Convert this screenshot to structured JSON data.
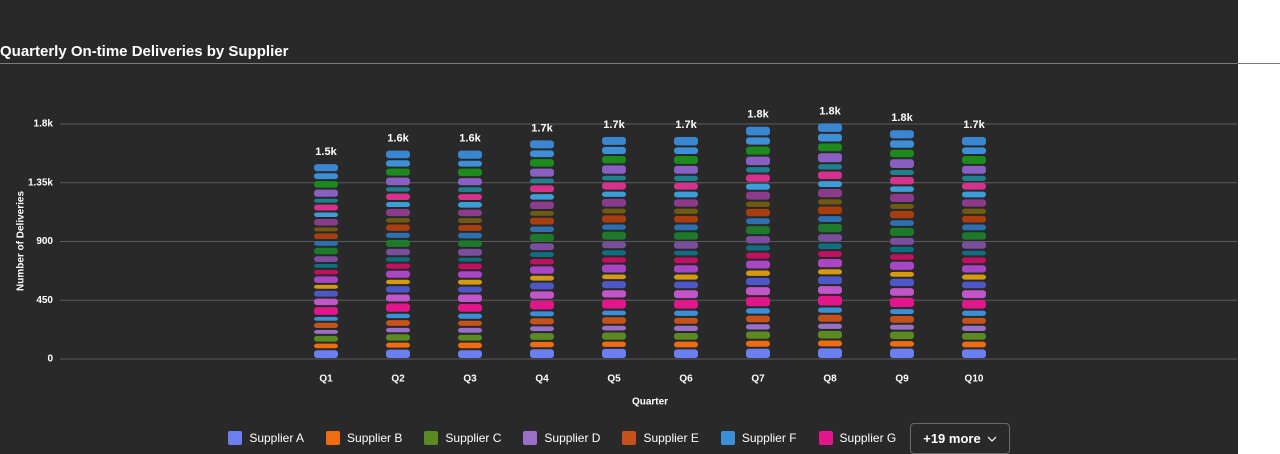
{
  "chart_data": {
    "type": "stacked-bar",
    "title": "Quarterly On-time Deliveries by Supplier",
    "x_label": "Quarter",
    "y_label": "Number of Deliveries",
    "categories": [
      "Q1",
      "Q2",
      "Q3",
      "Q4",
      "Q5",
      "Q6",
      "Q7",
      "Q8",
      "Q9",
      "Q10"
    ],
    "total_labels": [
      "1.5k",
      "1.6k",
      "1.6k",
      "1.7k",
      "1.7k",
      "1.7k",
      "1.8k",
      "1.8k",
      "1.8k",
      "1.7k"
    ],
    "ylim": [
      0,
      2100
    ],
    "yticks": [
      0,
      450,
      900,
      {
        "value": 1350,
        "label": "1.35k"
      },
      {
        "value": 1800,
        "label": "1.8k"
      }
    ],
    "grid": true,
    "legend_more": "+19 more",
    "series": [
      {
        "name": "Supplier A",
        "color": "#6b7ff0",
        "values": [
          75,
          79,
          75,
          82,
          85,
          81,
          86,
          89,
          87,
          81
        ]
      },
      {
        "name": "Supplier B",
        "color": "#f06c12",
        "values": [
          50,
          54,
          58,
          57,
          56,
          60,
          61,
          60,
          58,
          60
        ]
      },
      {
        "name": "Supplier C",
        "color": "#5b8a23",
        "values": [
          60,
          64,
          60,
          67,
          70,
          66,
          71,
          74,
          72,
          66
        ]
      },
      {
        "name": "Supplier D",
        "color": "#9a6fc7",
        "values": [
          45,
          49,
          53,
          52,
          51,
          55,
          56,
          55,
          53,
          55
        ]
      },
      {
        "name": "Supplier E",
        "color": "#c4521a",
        "values": [
          55,
          59,
          55,
          62,
          65,
          61,
          66,
          69,
          67,
          61
        ]
      },
      {
        "name": "Supplier F",
        "color": "#3a8fd6",
        "values": [
          45,
          49,
          53,
          52,
          51,
          55,
          56,
          55,
          53,
          55
        ]
      },
      {
        "name": "Supplier G",
        "color": "#e0168a",
        "values": [
          75,
          79,
          75,
          82,
          85,
          81,
          86,
          89,
          87,
          81
        ]
      },
      {
        "color": "#c056c8",
        "values": [
          65,
          69,
          73,
          72,
          71,
          75,
          76,
          75,
          73,
          75
        ]
      },
      {
        "color": "#4d57c8",
        "values": [
          60,
          64,
          60,
          67,
          70,
          66,
          71,
          74,
          72,
          66
        ]
      },
      {
        "color": "#d49a10",
        "values": [
          45,
          49,
          53,
          52,
          51,
          55,
          56,
          55,
          53,
          55
        ]
      },
      {
        "color": "#a946c6",
        "values": [
          65,
          69,
          65,
          72,
          75,
          71,
          76,
          79,
          77,
          71
        ]
      },
      {
        "color": "#c01060",
        "values": [
          50,
          54,
          58,
          57,
          56,
          60,
          61,
          60,
          58,
          60
        ]
      },
      {
        "color": "#0d6f80",
        "values": [
          45,
          49,
          45,
          52,
          55,
          51,
          56,
          59,
          57,
          51
        ]
      },
      {
        "color": "#7a4e9c",
        "values": [
          60,
          64,
          68,
          67,
          66,
          70,
          71,
          70,
          68,
          70
        ]
      },
      {
        "color": "#1c7a2a",
        "values": [
          65,
          69,
          65,
          72,
          75,
          71,
          76,
          79,
          77,
          71
        ]
      },
      {
        "color": "#2f6fb0",
        "values": [
          50,
          54,
          58,
          57,
          56,
          60,
          61,
          60,
          58,
          60
        ]
      },
      {
        "color": "#a83e10",
        "values": [
          60,
          64,
          60,
          67,
          70,
          66,
          71,
          74,
          72,
          66
        ]
      },
      {
        "color": "#6e5a12",
        "values": [
          45,
          49,
          53,
          52,
          51,
          55,
          56,
          55,
          53,
          55
        ]
      },
      {
        "color": "#8a3b8c",
        "values": [
          65,
          69,
          65,
          72,
          75,
          71,
          76,
          79,
          77,
          71
        ]
      },
      {
        "color": "#3b9ed8",
        "values": [
          50,
          54,
          58,
          57,
          56,
          60,
          61,
          60,
          58,
          60
        ]
      },
      {
        "color": "#d6318c",
        "values": [
          60,
          64,
          60,
          67,
          70,
          66,
          71,
          74,
          72,
          66
        ]
      },
      {
        "color": "#1f8090",
        "values": [
          45,
          49,
          53,
          52,
          51,
          55,
          56,
          55,
          53,
          55
        ]
      },
      {
        "color": "#8a5fc2",
        "values": [
          70,
          74,
          70,
          77,
          80,
          76,
          81,
          84,
          82,
          76
        ]
      },
      {
        "color": "#1c8a1c",
        "values": [
          65,
          69,
          73,
          72,
          71,
          75,
          76,
          75,
          73,
          75
        ]
      },
      {
        "color": "#3f8fd8",
        "values": [
          60,
          64,
          60,
          67,
          70,
          66,
          71,
          74,
          72,
          66
        ]
      },
      {
        "color": "#3a86d0",
        "values": [
          70,
          74,
          78,
          77,
          76,
          80,
          81,
          80,
          78,
          80
        ]
      }
    ]
  }
}
